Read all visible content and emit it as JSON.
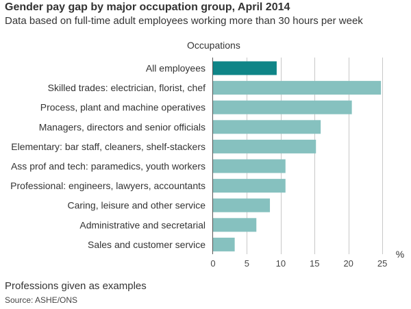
{
  "header": {
    "title": "Gender pay gap by major occupation group, April 2014",
    "subtitle": "Data based on full-time adult employees working more than 30 hours per week"
  },
  "footer": {
    "note": "Professions given as examples",
    "source": "Source: ASHE/ONS"
  },
  "colors": {
    "highlight": "#0f8587",
    "bar": "#86c1bf",
    "grid": "#c8c8c8",
    "axis": "#555555"
  },
  "chart_data": {
    "type": "bar",
    "orientation": "horizontal",
    "category_header": "Occupations",
    "unit": "%",
    "categories": [
      "All employees",
      "Skilled trades: electrician, florist, chef",
      "Process, plant and machine operatives",
      "Managers, directors and senior officials",
      "Elementary: bar staff, cleaners, shelf-stackers",
      "Ass prof and tech: paramedics, youth workers",
      "Professional: engineers, lawyers, accountants",
      "Caring, leisure and other service",
      "Administrative and secretarial",
      "Sales and customer service"
    ],
    "values": [
      9.4,
      24.8,
      20.5,
      15.9,
      15.2,
      10.7,
      10.7,
      8.4,
      6.4,
      3.2
    ],
    "highlighted": [
      "All employees"
    ],
    "xlim": [
      0,
      26
    ],
    "xticks": [
      0,
      5,
      10,
      15,
      20,
      25
    ],
    "grid": true
  }
}
